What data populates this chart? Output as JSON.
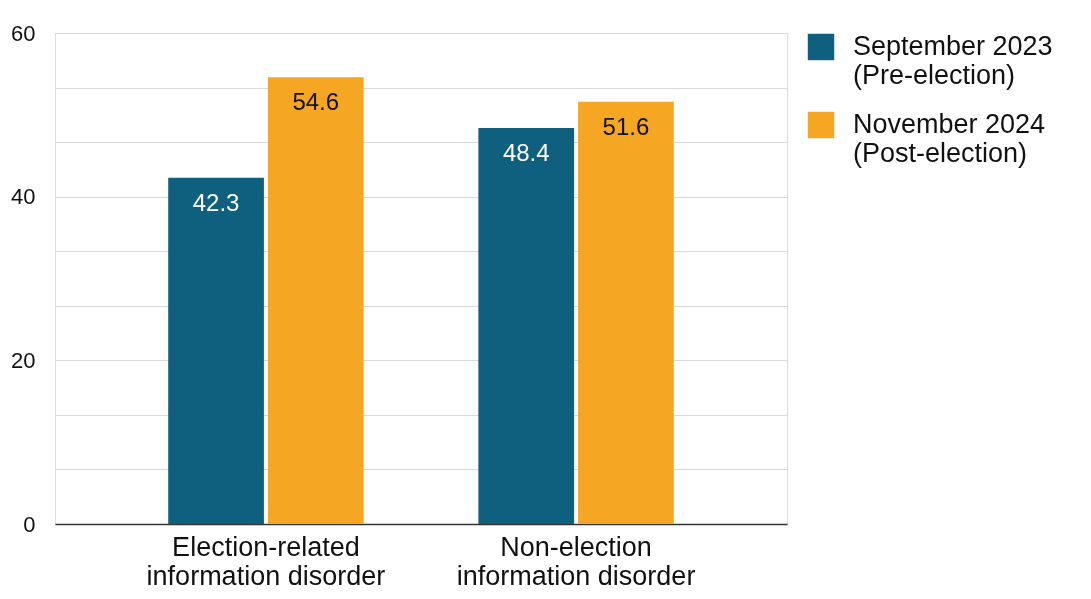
{
  "chart_data": {
    "type": "bar",
    "categories": [
      "Election-related\ninformation disorder",
      "Non-election\ninformation disorder"
    ],
    "series": [
      {
        "name": "September 2023\n(Pre-election)",
        "color": "#0f5f7e",
        "values": [
          42.3,
          48.4
        ]
      },
      {
        "name": "November 2024\n(Post-election)",
        "color": "#f5a623",
        "values": [
          54.6,
          51.6
        ]
      }
    ],
    "ylim": [
      0,
      60
    ],
    "yticks": [
      0,
      {
        "value": 6.667,
        "label": null
      },
      {
        "value": 13.333,
        "label": null
      },
      20,
      {
        "value": 26.667,
        "label": null
      },
      {
        "value": 33.333,
        "label": null
      },
      40,
      {
        "value": 46.667,
        "label": null
      },
      {
        "value": 53.333,
        "label": null
      },
      60
    ],
    "grid": "y",
    "legend": "right",
    "data_labels": true
  }
}
